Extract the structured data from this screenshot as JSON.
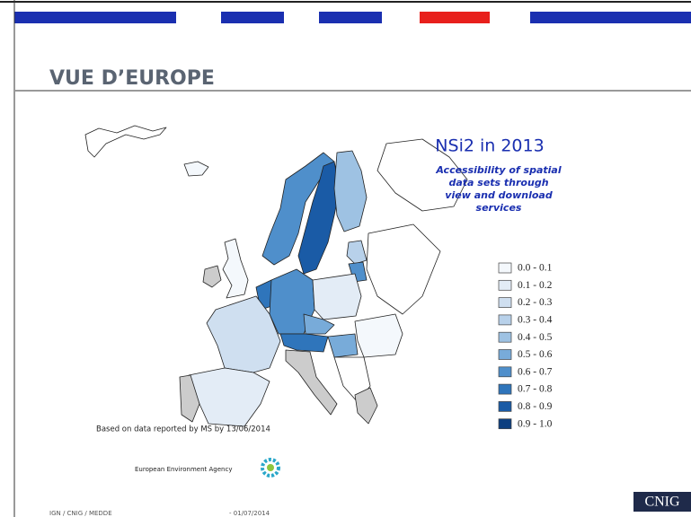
{
  "header": {
    "title": "VUE D’EUROPE"
  },
  "map": {
    "title": "NSi2 in 2013",
    "subtitle_lines": [
      "Accessibility of spatial",
      "data sets through",
      "view and download",
      "services"
    ],
    "legend": {
      "items": [
        "0.0 - 0.1",
        "0.1 - 0.2",
        "0.2 - 0.3",
        "0.3 - 0.4",
        "0.4 - 0.5",
        "0.5 - 0.6",
        "0.6 - 0.7",
        "0.7 - 0.8",
        "0.8 - 0.9",
        "0.9 - 1.0"
      ],
      "colors": [
        "#f4f8fc",
        "#e3ecf6",
        "#cfdff0",
        "#b8d1ea",
        "#9ec2e3",
        "#78abd9",
        "#4f8fcb",
        "#2f75bb",
        "#1a5ba6",
        "#0d3f80"
      ]
    },
    "source": "Based on data reported by MS by 13/06/2014"
  },
  "logo": {
    "text": "European Environment Agency"
  },
  "footer": {
    "left": "IGN / CNIG / MEDDE",
    "date": "- 01/07/2014",
    "brand": "CNIG"
  }
}
